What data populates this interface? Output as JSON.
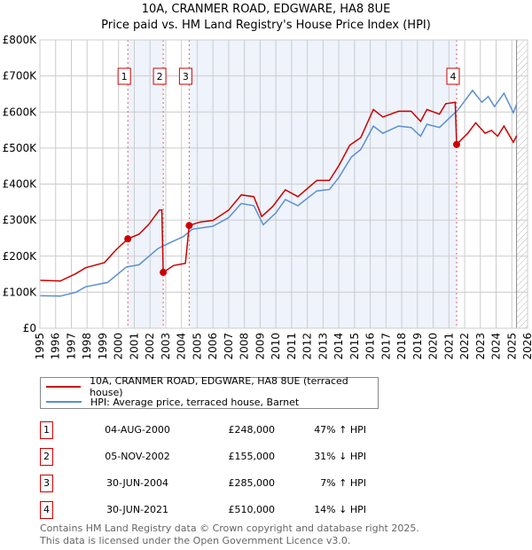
{
  "chart_data": {
    "type": "line",
    "title": "10A, CRANMER ROAD, EDGWARE, HA8 8UE",
    "subtitle": "Price paid vs. HM Land Registry's House Price Index (HPI)",
    "xlim": [
      1995,
      2026
    ],
    "ylim": [
      0,
      800000
    ],
    "x_ticks": [
      "1995",
      "1996",
      "1997",
      "1998",
      "1999",
      "2000",
      "2001",
      "2002",
      "2003",
      "2004",
      "2005",
      "2006",
      "2007",
      "2008",
      "2009",
      "2010",
      "2011",
      "2012",
      "2013",
      "2014",
      "2015",
      "2016",
      "2017",
      "2018",
      "2019",
      "2020",
      "2021",
      "2022",
      "2023",
      "2024",
      "2025",
      "2026"
    ],
    "y_ticks": [
      {
        "v": 0,
        "label": "£0"
      },
      {
        "v": 100000,
        "label": "£100K"
      },
      {
        "v": 200000,
        "label": "£200K"
      },
      {
        "v": 300000,
        "label": "£300K"
      },
      {
        "v": 400000,
        "label": "£400K"
      },
      {
        "v": 500000,
        "label": "£500K"
      },
      {
        "v": 600000,
        "label": "£600K"
      },
      {
        "v": 700000,
        "label": "£700K"
      },
      {
        "v": 800000,
        "label": "£800K"
      }
    ],
    "grid": true,
    "series": [
      {
        "name": "10A, CRANMER ROAD, EDGWARE, HA8 8UE (terraced house)",
        "color": "#cc0000",
        "x": [
          1995.0,
          1996.3,
          1997.3,
          1997.9,
          1999.1,
          1999.9,
          2000.59,
          2001.3,
          2001.9,
          2002.6,
          2002.75,
          2002.84,
          2003.5,
          2004.25,
          2004.49,
          2005.2,
          2006.0,
          2007.0,
          2007.8,
          2008.6,
          2009.1,
          2009.8,
          2010.6,
          2011.4,
          2012.6,
          2013.4,
          2014.0,
          2014.7,
          2015.4,
          2016.2,
          2016.8,
          2017.8,
          2018.6,
          2019.2,
          2019.6,
          2020.4,
          2020.8,
          2021.4,
          2021.49,
          2022.2,
          2022.7,
          2023.3,
          2023.7,
          2024.1,
          2024.5,
          2025.1,
          2025.3
        ],
        "values": [
          133000,
          131000,
          152000,
          168000,
          182000,
          220000,
          248000,
          261000,
          287000,
          328000,
          328000,
          155000,
          174000,
          180000,
          285000,
          295000,
          299000,
          328000,
          370000,
          365000,
          310000,
          338000,
          384000,
          365000,
          410000,
          410000,
          451000,
          508000,
          529000,
          607000,
          586000,
          602000,
          602000,
          574000,
          607000,
          594000,
          623000,
          627000,
          510000,
          541000,
          570000,
          541000,
          549000,
          533000,
          561000,
          516000,
          534000
        ]
      },
      {
        "name": "HPI: Average price, terraced house, Barnet",
        "color": "#5b8fd0",
        "x": [
          1995.0,
          1996.3,
          1997.3,
          1997.9,
          1999.3,
          2000.5,
          2001.3,
          2002.5,
          2003.3,
          2004.1,
          2004.7,
          2006.0,
          2007.0,
          2007.8,
          2008.6,
          2009.2,
          2010.0,
          2010.6,
          2011.4,
          2012.6,
          2013.4,
          2014.0,
          2014.8,
          2015.4,
          2016.2,
          2016.8,
          2017.8,
          2018.6,
          2019.2,
          2019.6,
          2020.4,
          2021.0,
          2021.6,
          2022.5,
          2023.1,
          2023.5,
          2023.9,
          2024.5,
          2025.1,
          2025.3
        ],
        "values": [
          90000,
          89000,
          100000,
          115000,
          127000,
          170000,
          176000,
          221000,
          238000,
          254000,
          275000,
          283000,
          307000,
          346000,
          340000,
          287000,
          320000,
          357000,
          340000,
          381000,
          385000,
          418000,
          475000,
          496000,
          561000,
          541000,
          561000,
          557000,
          533000,
          566000,
          557000,
          582000,
          607000,
          660000,
          627000,
          643000,
          615000,
          652000,
          598000,
          621000
        ]
      }
    ],
    "sales": [
      {
        "n": "1",
        "x": 2000.59,
        "value": 248000,
        "date": "04-AUG-2000",
        "price": "£248,000",
        "hpi": "47% ↑ HPI"
      },
      {
        "n": "2",
        "x": 2002.84,
        "value": 155000,
        "date": "05-NOV-2002",
        "price": "£155,000",
        "hpi": "31% ↓ HPI"
      },
      {
        "n": "3",
        "x": 2004.49,
        "value": 285000,
        "date": "30-JUN-2004",
        "price": "£285,000",
        "hpi": "7% ↑ HPI"
      },
      {
        "n": "4",
        "x": 2021.49,
        "value": 510000,
        "date": "30-JUN-2021",
        "price": "£510,000",
        "hpi": "14% ↓ HPI"
      }
    ],
    "forecast_from": 2025.3,
    "legend_position": "below"
  },
  "footer": {
    "line1": "Contains HM Land Registry data © Crown copyright and database right 2025.",
    "line2": "This data is licensed under the Open Government Licence v3.0."
  }
}
